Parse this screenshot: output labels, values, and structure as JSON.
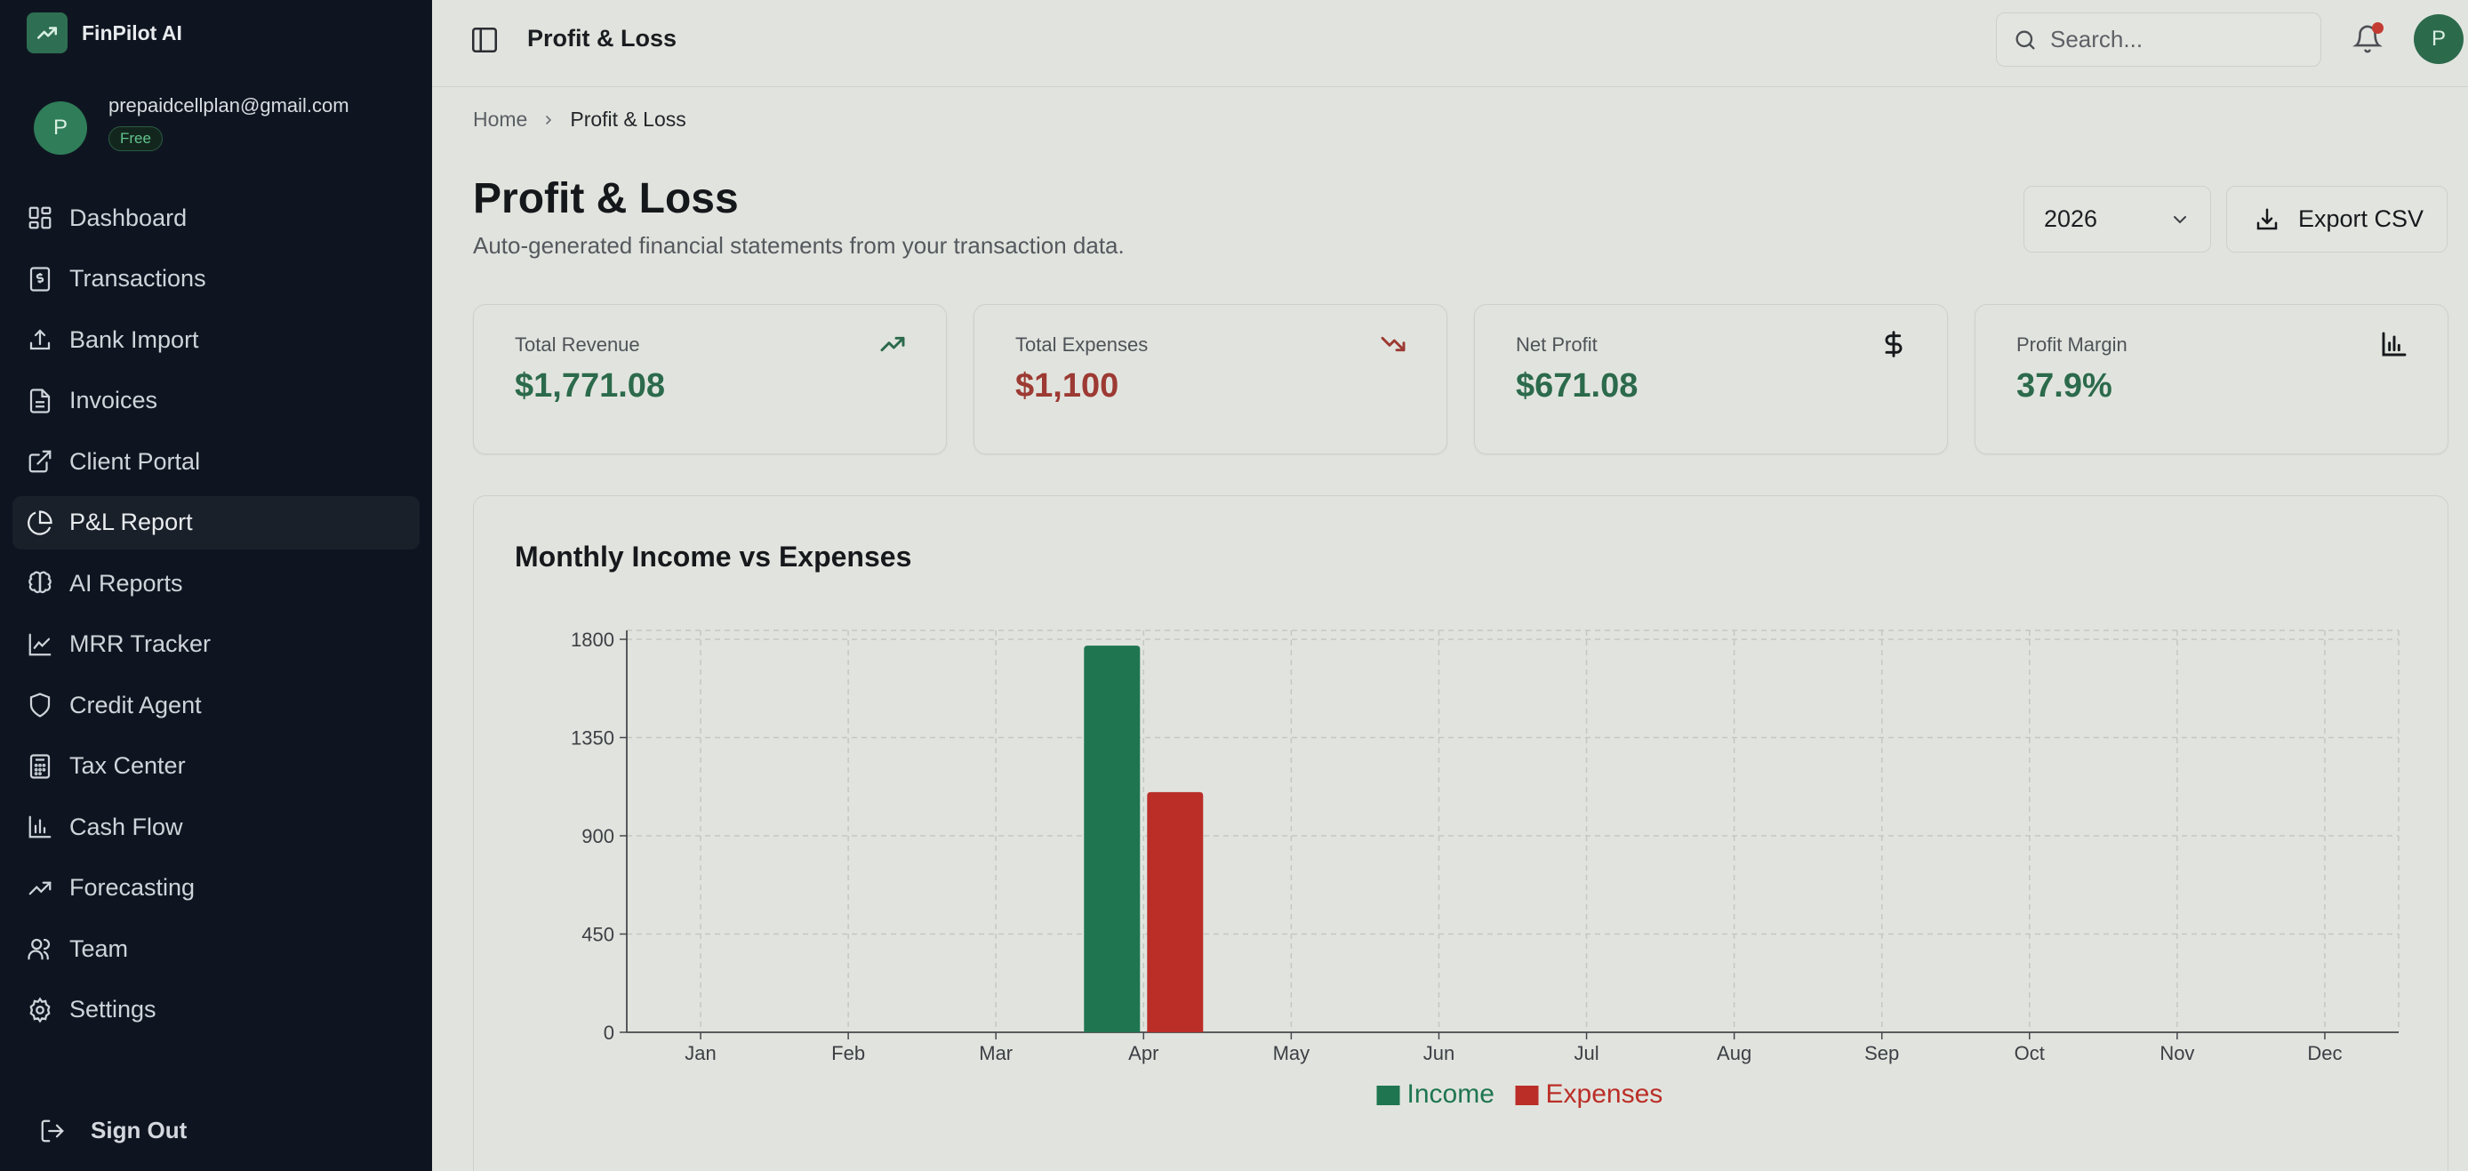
{
  "brand": {
    "name": "FinPilot AI"
  },
  "account": {
    "email": "prepaidcellplan@gmail.com",
    "plan": "Free",
    "avatar_initial": "P"
  },
  "sidebar": {
    "items": [
      {
        "label": "Dashboard",
        "icon": "dashboard-icon"
      },
      {
        "label": "Transactions",
        "icon": "receipt-icon"
      },
      {
        "label": "Bank Import",
        "icon": "upload-icon"
      },
      {
        "label": "Invoices",
        "icon": "file-icon"
      },
      {
        "label": "Client Portal",
        "icon": "external-link-icon"
      },
      {
        "label": "P&L Report",
        "icon": "pie-chart-icon",
        "active": true
      },
      {
        "label": "AI Reports",
        "icon": "brain-icon"
      },
      {
        "label": "MRR Tracker",
        "icon": "line-chart-icon"
      },
      {
        "label": "Credit Agent",
        "icon": "shield-icon"
      },
      {
        "label": "Tax Center",
        "icon": "calculator-icon"
      },
      {
        "label": "Cash Flow",
        "icon": "bar-chart-icon"
      },
      {
        "label": "Forecasting",
        "icon": "trending-up-icon"
      },
      {
        "label": "Team",
        "icon": "users-icon"
      },
      {
        "label": "Settings",
        "icon": "gear-icon"
      }
    ],
    "sign_out": "Sign Out"
  },
  "topbar": {
    "title": "Profit & Loss",
    "search_placeholder": "Search...",
    "avatar_initial": "P"
  },
  "breadcrumb": {
    "home": "Home",
    "current": "Profit & Loss"
  },
  "page": {
    "title": "Profit & Loss",
    "subtitle": "Auto-generated financial statements from your transaction data.",
    "year": "2026",
    "export_label": "Export CSV"
  },
  "stats": [
    {
      "label": "Total Revenue",
      "value": "$1,771.08",
      "color": "#2c6a4c",
      "icon": "trending-up-icon"
    },
    {
      "label": "Total Expenses",
      "value": "$1,100",
      "color": "#9c3a33",
      "icon": "trending-down-icon"
    },
    {
      "label": "Net Profit",
      "value": "$671.08",
      "color": "#2c6a4c",
      "icon": "dollar-icon"
    },
    {
      "label": "Profit Margin",
      "value": "37.9%",
      "color": "#2c6a4c",
      "icon": "bar-chart-icon"
    }
  ],
  "chart_data": {
    "type": "bar",
    "title": "Monthly Income vs Expenses",
    "categories": [
      "Jan",
      "Feb",
      "Mar",
      "Apr",
      "May",
      "Jun",
      "Jul",
      "Aug",
      "Sep",
      "Oct",
      "Nov",
      "Dec"
    ],
    "series": [
      {
        "name": "Income",
        "color": "#1f7550",
        "values": [
          0,
          0,
          0,
          1771.08,
          0,
          0,
          0,
          0,
          0,
          0,
          0,
          0
        ]
      },
      {
        "name": "Expenses",
        "color": "#bb2e28",
        "values": [
          0,
          0,
          0,
          1100,
          0,
          0,
          0,
          0,
          0,
          0,
          0,
          0
        ]
      }
    ],
    "yticks": [
      "0",
      "450",
      "900",
      "1350",
      "1800"
    ],
    "ylim": [
      0,
      1800
    ],
    "grid": true,
    "legend": "bottom-center"
  }
}
